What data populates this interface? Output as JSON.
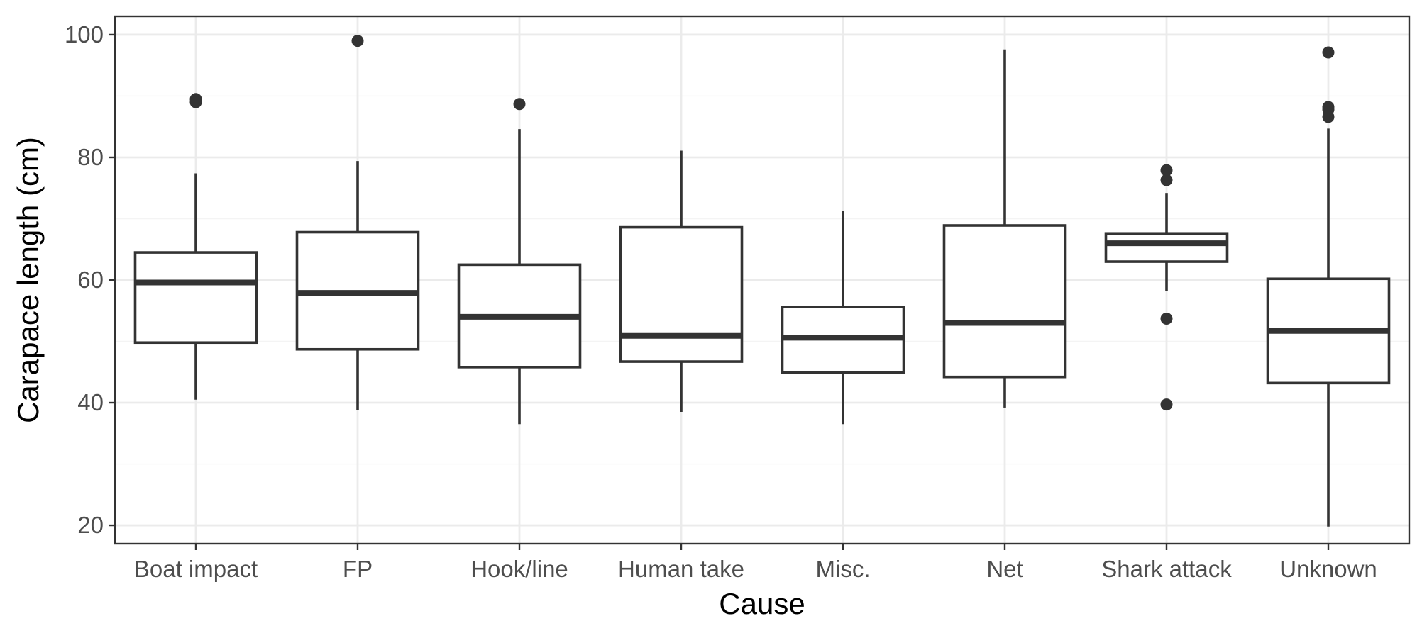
{
  "colors": {
    "background": "#ffffff",
    "panel_border": "#333333",
    "grid_major": "#ebebeb",
    "grid_minor": "#f4f4f4",
    "box_line": "#333333",
    "box_fill": "#ffffff",
    "outlier": "#333333",
    "tick_text": "#4d4d4d",
    "title_text": "#000000"
  },
  "chart_data": {
    "type": "boxplot",
    "title": "",
    "xlabel": "Cause",
    "ylabel": "Carapace length (cm)",
    "ylim": [
      17,
      103
    ],
    "yticks": [
      20,
      40,
      60,
      80,
      100
    ],
    "grid": true,
    "legend": "none",
    "categories": [
      "Boat impact",
      "FP",
      "Hook/line",
      "Human take",
      "Misc.",
      "Net",
      "Shark attack",
      "Unknown"
    ],
    "boxes": [
      {
        "category": "Boat impact",
        "lower_whisker": 40.5,
        "q1": 49.8,
        "median": 59.6,
        "q3": 64.5,
        "upper_whisker": 77.4,
        "outliers": [
          89.5,
          89.0
        ]
      },
      {
        "category": "FP",
        "lower_whisker": 38.8,
        "q1": 48.7,
        "median": 57.9,
        "q3": 67.8,
        "upper_whisker": 79.4,
        "outliers": [
          99.0
        ]
      },
      {
        "category": "Hook/line",
        "lower_whisker": 36.5,
        "q1": 45.8,
        "median": 54.0,
        "q3": 62.5,
        "upper_whisker": 84.6,
        "outliers": [
          88.7
        ]
      },
      {
        "category": "Human take",
        "lower_whisker": 38.5,
        "q1": 46.7,
        "median": 50.9,
        "q3": 68.6,
        "upper_whisker": 81.1,
        "outliers": []
      },
      {
        "category": "Misc.",
        "lower_whisker": 36.5,
        "q1": 44.9,
        "median": 50.6,
        "q3": 55.6,
        "upper_whisker": 71.3,
        "outliers": []
      },
      {
        "category": "Net",
        "lower_whisker": 39.2,
        "q1": 44.2,
        "median": 53.0,
        "q3": 68.9,
        "upper_whisker": 97.6,
        "outliers": []
      },
      {
        "category": "Shark attack",
        "lower_whisker": 58.2,
        "q1": 63.0,
        "median": 66.0,
        "q3": 67.6,
        "upper_whisker": 74.2,
        "outliers": [
          77.9,
          76.3,
          53.7,
          39.7
        ]
      },
      {
        "category": "Unknown",
        "lower_whisker": 19.8,
        "q1": 43.2,
        "median": 51.7,
        "q3": 60.2,
        "upper_whisker": 84.7,
        "outliers": [
          97.1,
          88.2,
          87.8,
          86.6
        ]
      }
    ]
  }
}
